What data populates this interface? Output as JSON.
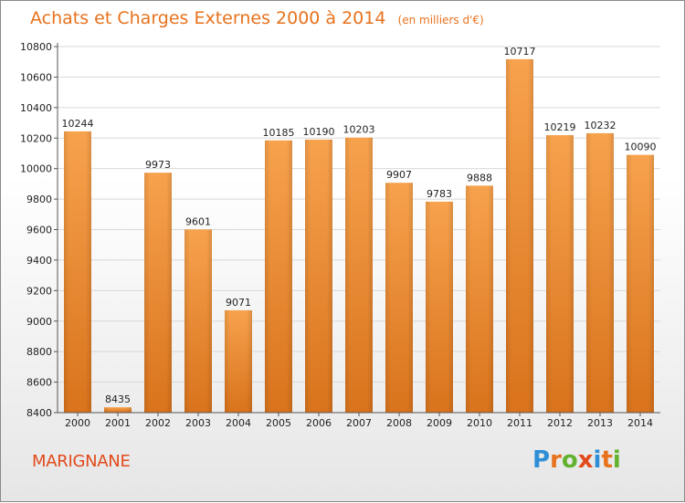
{
  "chart_data": {
    "type": "bar",
    "title": "Achats et Charges Externes 2000 à 2014",
    "unit_label": "(en milliers d'€)",
    "categories": [
      "2000",
      "2001",
      "2002",
      "2003",
      "2004",
      "2005",
      "2006",
      "2007",
      "2008",
      "2009",
      "2010",
      "2011",
      "2012",
      "2013",
      "2014"
    ],
    "values": [
      10244,
      8435,
      9973,
      9601,
      9071,
      10185,
      10190,
      10203,
      9907,
      9783,
      9888,
      10717,
      10219,
      10232,
      10090
    ],
    "ylim": [
      8400,
      10800
    ],
    "yticks": [
      8400,
      8600,
      8800,
      9000,
      9200,
      9400,
      9600,
      9800,
      10000,
      10200,
      10400,
      10600,
      10800
    ],
    "grid": true,
    "bar_color_top": "#f7a24d",
    "bar_color_bottom": "#d9731c"
  },
  "footer": {
    "city": "MARIGNANE",
    "brand_letters": [
      "P",
      "r",
      "o",
      "x",
      "i",
      "t",
      "i"
    ],
    "brand_colors": [
      "#2f8fd6",
      "#e8721d",
      "#62b22f",
      "#e24a1c",
      "#2f8fd6",
      "#e8721d",
      "#62b22f"
    ]
  }
}
